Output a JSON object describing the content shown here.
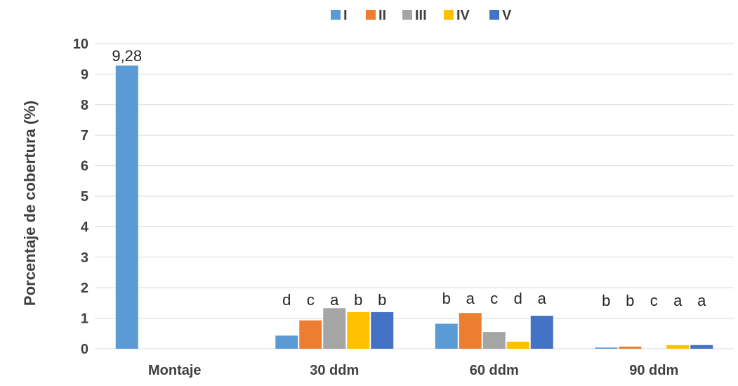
{
  "chart_data": {
    "type": "bar",
    "title": "",
    "xlabel": "",
    "ylabel": "Porcentaje de cobertura (%)",
    "ylim": [
      0,
      10
    ],
    "yticks": [
      0,
      1,
      2,
      3,
      4,
      5,
      6,
      7,
      8,
      9,
      10
    ],
    "grid": true,
    "legend_position": "top",
    "categories": [
      "Montaje",
      "30 ddm",
      "60 ddm",
      "90 ddm"
    ],
    "series": [
      {
        "name": "I",
        "color": "#5B9BD5",
        "values": [
          9.28,
          0.43,
          0.82,
          0.04
        ],
        "labels": [
          "9,28",
          "d",
          "b",
          "b"
        ]
      },
      {
        "name": "II",
        "color": "#ED7D31",
        "values": [
          0,
          0.93,
          1.17,
          0.07
        ],
        "labels": [
          "",
          "c",
          "a",
          "b"
        ]
      },
      {
        "name": "III",
        "color": "#A5A5A5",
        "values": [
          0,
          1.33,
          0.55,
          0.0
        ],
        "labels": [
          "",
          "a",
          "c",
          "c"
        ]
      },
      {
        "name": "IV",
        "color": "#FFC000",
        "values": [
          0,
          1.2,
          0.23,
          0.12
        ],
        "labels": [
          "",
          "b",
          "d",
          "a"
        ]
      },
      {
        "name": "V",
        "color": "#4472C4",
        "values": [
          0,
          1.2,
          1.08,
          0.12
        ],
        "labels": [
          "",
          "b",
          "a",
          "a"
        ]
      }
    ]
  }
}
